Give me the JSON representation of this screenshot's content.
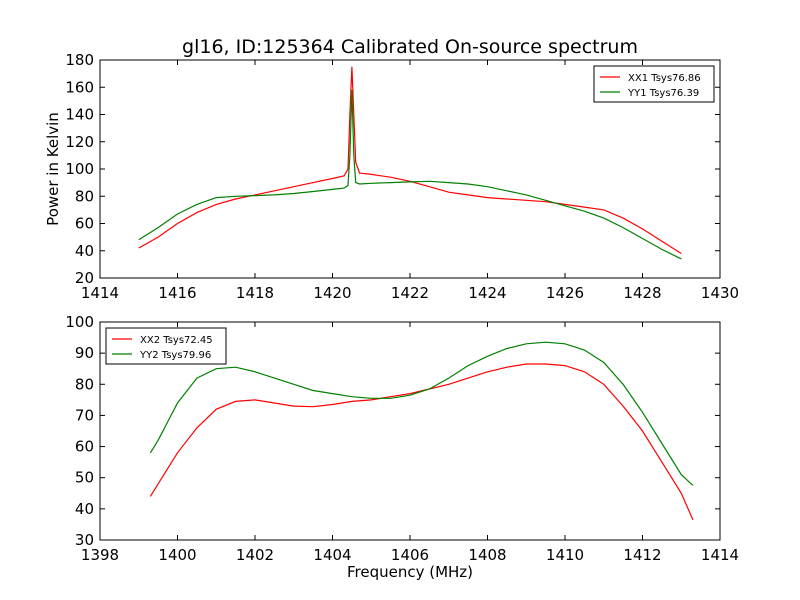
{
  "figure_title": "gl16, ID:125364 Calibrated On-source spectrum",
  "colors": {
    "red": "#ff0000",
    "green": "#008000"
  },
  "chart_data": [
    {
      "type": "line",
      "title": "gl16, ID:125364 Calibrated On-source spectrum",
      "xlabel": "",
      "ylabel": "Power in Kelvin",
      "xlim": [
        1414,
        1430
      ],
      "ylim": [
        20,
        180
      ],
      "xticks": [
        1414,
        1416,
        1418,
        1420,
        1422,
        1424,
        1426,
        1428,
        1430
      ],
      "yticks": [
        20,
        40,
        60,
        80,
        100,
        120,
        140,
        160,
        180
      ],
      "grid": false,
      "legend": "top-right",
      "series": [
        {
          "name": "XX1 Tsys76.86",
          "color": "#ff0000",
          "points": [
            [
              1415,
              42
            ],
            [
              1415.5,
              50
            ],
            [
              1416,
              60
            ],
            [
              1416.5,
              68
            ],
            [
              1417,
              74
            ],
            [
              1417.5,
              78
            ],
            [
              1418,
              81
            ],
            [
              1418.5,
              84
            ],
            [
              1419,
              87
            ],
            [
              1419.5,
              90
            ],
            [
              1420,
              93
            ],
            [
              1420.3,
              95
            ],
            [
              1420.4,
              100
            ],
            [
              1420.45,
              140
            ],
            [
              1420.5,
              175
            ],
            [
              1420.55,
              140
            ],
            [
              1420.6,
              105
            ],
            [
              1420.7,
              97
            ],
            [
              1421,
              96
            ],
            [
              1421.5,
              94
            ],
            [
              1422,
              91
            ],
            [
              1422.5,
              87
            ],
            [
              1423,
              83
            ],
            [
              1423.5,
              81
            ],
            [
              1424,
              79
            ],
            [
              1424.5,
              78
            ],
            [
              1425,
              77
            ],
            [
              1425.5,
              76
            ],
            [
              1426,
              74
            ],
            [
              1426.5,
              72
            ],
            [
              1427,
              70
            ],
            [
              1427.5,
              64
            ],
            [
              1428,
              56
            ],
            [
              1428.5,
              47
            ],
            [
              1429,
              38
            ]
          ]
        },
        {
          "name": "YY1 Tsys76.39",
          "color": "#008000",
          "points": [
            [
              1415,
              48
            ],
            [
              1415.5,
              57
            ],
            [
              1416,
              67
            ],
            [
              1416.5,
              74
            ],
            [
              1417,
              79
            ],
            [
              1417.5,
              80
            ],
            [
              1418,
              80.5
            ],
            [
              1418.5,
              81
            ],
            [
              1419,
              82
            ],
            [
              1419.5,
              83.5
            ],
            [
              1420,
              85
            ],
            [
              1420.3,
              86
            ],
            [
              1420.4,
              88
            ],
            [
              1420.45,
              110
            ],
            [
              1420.5,
              158
            ],
            [
              1420.55,
              110
            ],
            [
              1420.6,
              90
            ],
            [
              1420.7,
              89
            ],
            [
              1421,
              89.5
            ],
            [
              1421.5,
              90
            ],
            [
              1422,
              90.5
            ],
            [
              1422.5,
              91
            ],
            [
              1423,
              90
            ],
            [
              1423.5,
              89
            ],
            [
              1424,
              87
            ],
            [
              1424.5,
              84
            ],
            [
              1425,
              81
            ],
            [
              1425.5,
              77
            ],
            [
              1426,
              73
            ],
            [
              1426.5,
              69
            ],
            [
              1427,
              64
            ],
            [
              1427.5,
              57
            ],
            [
              1428,
              49
            ],
            [
              1428.5,
              41
            ],
            [
              1429,
              34
            ]
          ]
        }
      ]
    },
    {
      "type": "line",
      "title": "",
      "xlabel": "Frequency (MHz)",
      "ylabel": "",
      "xlim": [
        1398,
        1414
      ],
      "ylim": [
        30,
        100
      ],
      "xticks": [
        1398,
        1400,
        1402,
        1404,
        1406,
        1408,
        1410,
        1412,
        1414
      ],
      "yticks": [
        30,
        40,
        50,
        60,
        70,
        80,
        90,
        100
      ],
      "grid": false,
      "legend": "top-left",
      "series": [
        {
          "name": "XX2 Tsys72.45",
          "color": "#ff0000",
          "points": [
            [
              1399.3,
              44
            ],
            [
              1399.5,
              48
            ],
            [
              1400,
              58
            ],
            [
              1400.5,
              66
            ],
            [
              1401,
              72
            ],
            [
              1401.5,
              74.5
            ],
            [
              1402,
              75
            ],
            [
              1402.5,
              74
            ],
            [
              1403,
              73
            ],
            [
              1403.5,
              72.8
            ],
            [
              1404,
              73.5
            ],
            [
              1404.5,
              74.5
            ],
            [
              1405,
              75
            ],
            [
              1405.5,
              76
            ],
            [
              1406,
              77
            ],
            [
              1406.5,
              78.5
            ],
            [
              1407,
              80
            ],
            [
              1407.5,
              82
            ],
            [
              1408,
              84
            ],
            [
              1408.5,
              85.5
            ],
            [
              1409,
              86.5
            ],
            [
              1409.5,
              86.5
            ],
            [
              1410,
              86
            ],
            [
              1410.5,
              84
            ],
            [
              1411,
              80
            ],
            [
              1411.5,
              73
            ],
            [
              1412,
              65
            ],
            [
              1412.5,
              55
            ],
            [
              1413,
              45
            ],
            [
              1413.3,
              36.5
            ]
          ]
        },
        {
          "name": "YY2 Tsys79.96",
          "color": "#008000",
          "points": [
            [
              1399.3,
              58
            ],
            [
              1399.5,
              62
            ],
            [
              1400,
              74
            ],
            [
              1400.5,
              82
            ],
            [
              1401,
              85
            ],
            [
              1401.5,
              85.5
            ],
            [
              1402,
              84
            ],
            [
              1402.5,
              82
            ],
            [
              1403,
              80
            ],
            [
              1403.5,
              78
            ],
            [
              1404,
              77
            ],
            [
              1404.5,
              76
            ],
            [
              1405,
              75.5
            ],
            [
              1405.5,
              75.5
            ],
            [
              1406,
              76.5
            ],
            [
              1406.5,
              78.5
            ],
            [
              1407,
              82
            ],
            [
              1407.5,
              86
            ],
            [
              1408,
              89
            ],
            [
              1408.5,
              91.5
            ],
            [
              1409,
              93
            ],
            [
              1409.5,
              93.5
            ],
            [
              1410,
              93
            ],
            [
              1410.5,
              91
            ],
            [
              1411,
              87
            ],
            [
              1411.5,
              80
            ],
            [
              1412,
              71
            ],
            [
              1412.5,
              61
            ],
            [
              1413,
              51
            ],
            [
              1413.3,
              47.5
            ]
          ]
        }
      ]
    }
  ]
}
